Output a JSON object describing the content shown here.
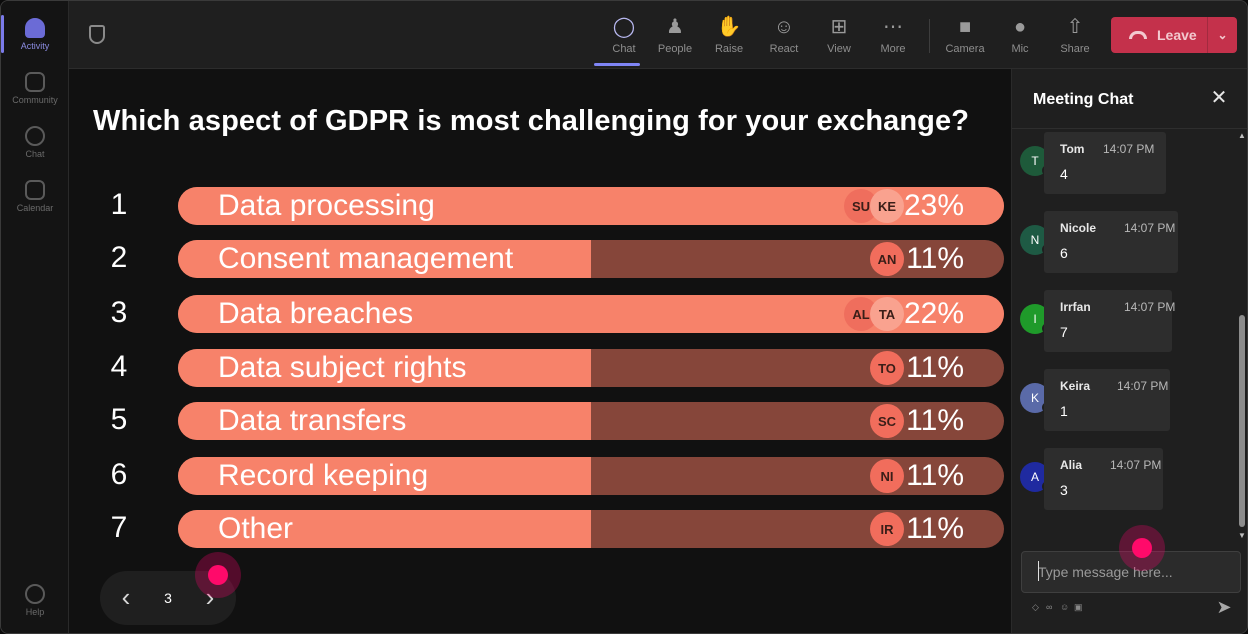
{
  "rail": {
    "items": [
      {
        "label": "Activity",
        "icon": "bell-icon",
        "active": true
      },
      {
        "label": "Community",
        "icon": "community-icon"
      },
      {
        "label": "Chat",
        "icon": "chat-icon"
      },
      {
        "label": "Calendar",
        "icon": "calendar-icon"
      }
    ],
    "help": {
      "label": "Help",
      "icon": "help-icon"
    }
  },
  "toolbar": {
    "chat": "Chat",
    "people": "People",
    "raise": "Raise",
    "react": "React",
    "view": "View",
    "more": "More",
    "camera": "Camera",
    "mic": "Mic",
    "share": "Share",
    "leave": "Leave",
    "accent": "#7f85f5",
    "leave_color": "#c4314b"
  },
  "poll": {
    "question": "Which aspect of GDPR is most challenging for your exchange?",
    "fill_color": "#f7826a",
    "track_color": "#86463a",
    "options": [
      {
        "num": "1",
        "label": "Data processing",
        "percent_text": "23%",
        "fraction": 1.0,
        "avatars": [
          "SU",
          "KE"
        ]
      },
      {
        "num": "2",
        "label": "Consent management",
        "percent_text": "11%",
        "fraction": 0.5,
        "avatars": [
          "AN"
        ]
      },
      {
        "num": "3",
        "label": "Data breaches",
        "percent_text": "22%",
        "fraction": 1.0,
        "avatars": [
          "AL",
          "TA"
        ]
      },
      {
        "num": "4",
        "label": "Data subject rights",
        "percent_text": "11%",
        "fraction": 0.5,
        "avatars": [
          "TO"
        ]
      },
      {
        "num": "5",
        "label": "Data transfers",
        "percent_text": "11%",
        "fraction": 0.5,
        "avatars": [
          "SC"
        ]
      },
      {
        "num": "6",
        "label": "Record keeping",
        "percent_text": "11%",
        "fraction": 0.5,
        "avatars": [
          "NI"
        ]
      },
      {
        "num": "7",
        "label": "Other",
        "percent_text": "11%",
        "fraction": 0.5,
        "avatars": [
          "IR"
        ]
      }
    ]
  },
  "pager": {
    "page": "3"
  },
  "chat": {
    "title": "Meeting Chat",
    "placeholder": "Type message here...",
    "messages": [
      {
        "initial": "T",
        "name": "Tom",
        "time": "14:07 PM",
        "text": "4",
        "color": "#1e5a3a"
      },
      {
        "initial": "N",
        "name": "Nicole",
        "time": "14:07 PM",
        "text": "6",
        "color": "#1e5a44"
      },
      {
        "initial": "I",
        "name": "Irrfan",
        "time": "14:07 PM",
        "text": "7",
        "color": "#1f9a2a"
      },
      {
        "initial": "K",
        "name": "Keira",
        "time": "14:07 PM",
        "text": "1",
        "color": "#5a6aa8"
      },
      {
        "initial": "A",
        "name": "Alia",
        "time": "14:07 PM",
        "text": "3",
        "color": "#1f2aa0"
      }
    ]
  }
}
